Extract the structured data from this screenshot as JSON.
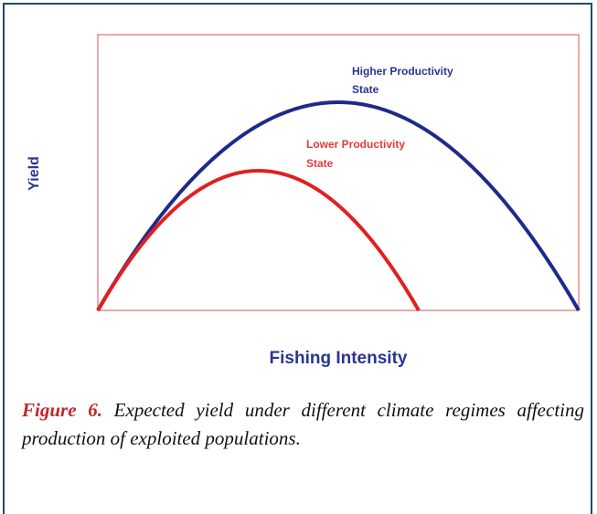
{
  "figure": {
    "y_axis_label": "Yield",
    "x_axis_label": "Fishing Intensity",
    "curve_labels": [
      {
        "line1": "Higher Productivity",
        "line2": "State"
      },
      {
        "line1": "Lower Productivity",
        "line2": "State"
      }
    ],
    "caption": {
      "label": "Figure 6.",
      "text": "Expected yield under different climate regimes affecting production of exploited populations."
    }
  }
}
